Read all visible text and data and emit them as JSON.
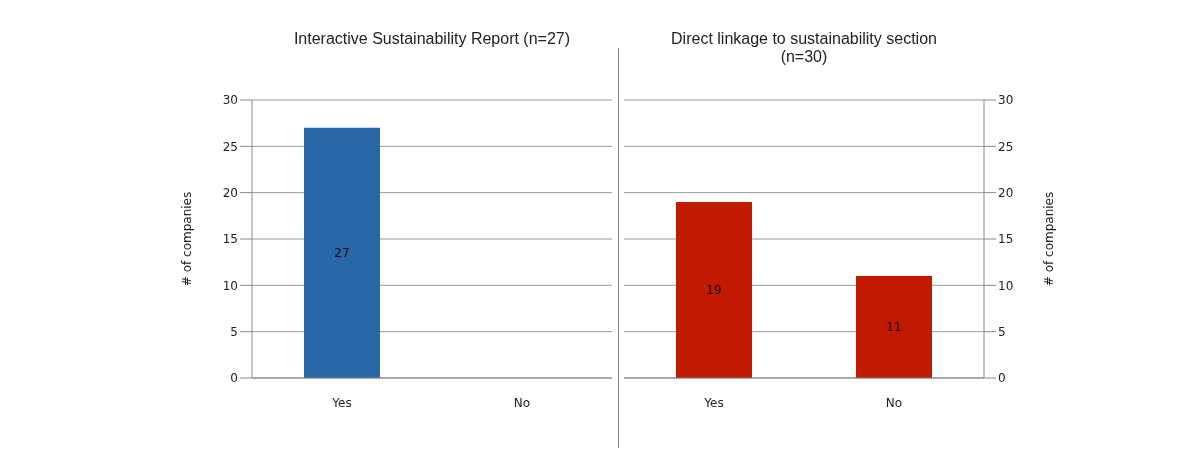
{
  "chart_data": [
    {
      "type": "bar",
      "title": "Interactive Sustainability Report (n=27)",
      "ylabel": "# of companies",
      "categories": [
        "Yes",
        "No"
      ],
      "values": [
        27,
        0
      ],
      "value_labels": [
        "27",
        null
      ],
      "color": "#2a67a8",
      "ylim": [
        0,
        30
      ],
      "yticks": [
        0,
        5,
        10,
        15,
        20,
        25,
        30
      ],
      "grid": "y"
    },
    {
      "type": "bar",
      "title": "Direct linkage to sustainability section (n=30)",
      "ylabel": "# of companies",
      "categories": [
        "Yes",
        "No"
      ],
      "values": [
        19,
        11
      ],
      "color": "#c01a00",
      "ylim": [
        0,
        30
      ],
      "yticks": [
        0,
        5,
        10,
        15,
        20,
        25,
        30
      ],
      "grid": "y",
      "data_labels": true
    }
  ]
}
